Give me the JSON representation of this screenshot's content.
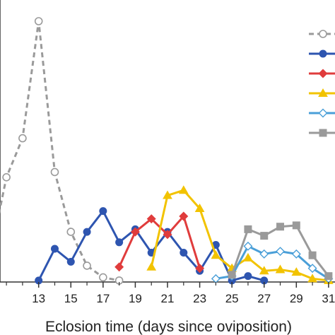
{
  "chart_data": {
    "type": "line",
    "xlabel": "Eclosion time (days since oviposition)",
    "x_ticks": [
      "13",
      "15",
      "17",
      "19",
      "21",
      "23",
      "25",
      "27",
      "29",
      "31"
    ],
    "xlim": [
      10.6,
      31.4
    ],
    "ylim": [
      0,
      1
    ],
    "legend": "top-right",
    "series": [
      {
        "name": "",
        "color": "#9a9a9a",
        "dash": true,
        "marker": "open-circle",
        "x": [
          10,
          11,
          12,
          13,
          14,
          15,
          16,
          17,
          18
        ],
        "y": [
          0.1,
          0.4,
          0.55,
          1.0,
          0.42,
          0.19,
          0.06,
          0.015,
          0.003
        ]
      },
      {
        "name": "",
        "color": "#2e55b0",
        "marker": "filled-circle",
        "x": [
          13,
          14,
          15,
          16,
          17,
          18,
          19,
          20,
          21,
          22,
          23,
          24,
          25,
          26,
          27
        ],
        "y": [
          0.003,
          0.125,
          0.075,
          0.19,
          0.27,
          0.15,
          0.2,
          0.11,
          0.19,
          0.11,
          0.04,
          0.14,
          0.003,
          0.02,
          0.003
        ]
      },
      {
        "name": "",
        "color": "#e03c3c",
        "marker": "diamond",
        "x": [
          18,
          19,
          20,
          21,
          22,
          23
        ],
        "y": [
          0.055,
          0.19,
          0.24,
          0.18,
          0.25,
          0.05
        ]
      },
      {
        "name": "",
        "color": "#f2c300",
        "marker": "triangle",
        "x": [
          20,
          21,
          22,
          23,
          24,
          25,
          26,
          27,
          28,
          29,
          30,
          31
        ],
        "y": [
          0.055,
          0.33,
          0.35,
          0.28,
          0.1,
          0.05,
          0.09,
          0.04,
          0.045,
          0.035,
          0.01,
          0.003
        ]
      },
      {
        "name": "",
        "color": "#4a9fd8",
        "marker": "open-diamond",
        "x": [
          24,
          25,
          26,
          27,
          28,
          29,
          30,
          31
        ],
        "y": [
          0.01,
          0.02,
          0.135,
          0.105,
          0.115,
          0.105,
          0.05,
          0.01
        ]
      },
      {
        "name": "",
        "color": "#9a9a9a",
        "marker": "square",
        "x": [
          25,
          26,
          27,
          28,
          29,
          30,
          31
        ],
        "y": [
          0.025,
          0.2,
          0.175,
          0.21,
          0.215,
          0.1,
          0.02
        ]
      }
    ]
  }
}
